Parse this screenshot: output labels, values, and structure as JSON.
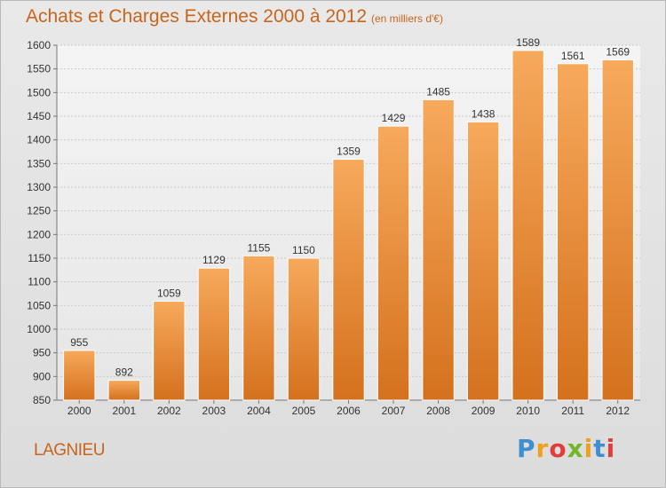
{
  "header": {
    "title": "Achats et Charges Externes 2000 à 2012",
    "subtitle": "(en milliers d'€)"
  },
  "footer": {
    "town": "LAGNIEU",
    "brand": "Proxiti"
  },
  "colors": {
    "accent": "#c8651c",
    "bar_top": "#f7a95c",
    "bar_bottom": "#d4711d"
  },
  "chart_data": {
    "type": "bar",
    "title": "Achats et Charges Externes 2000 à 2012",
    "subtitle": "(en milliers d'€)",
    "xlabel": "",
    "ylabel": "",
    "categories": [
      "2000",
      "2001",
      "2002",
      "2003",
      "2004",
      "2005",
      "2006",
      "2007",
      "2008",
      "2009",
      "2010",
      "2011",
      "2012"
    ],
    "values": [
      955,
      892,
      1059,
      1129,
      1155,
      1150,
      1359,
      1429,
      1485,
      1438,
      1589,
      1561,
      1569
    ],
    "ylim": [
      850,
      1600
    ],
    "yticks": [
      850,
      900,
      950,
      1000,
      1050,
      1100,
      1150,
      1200,
      1250,
      1300,
      1350,
      1400,
      1450,
      1500,
      1550,
      1600
    ],
    "grid": true,
    "data_labels": true
  }
}
